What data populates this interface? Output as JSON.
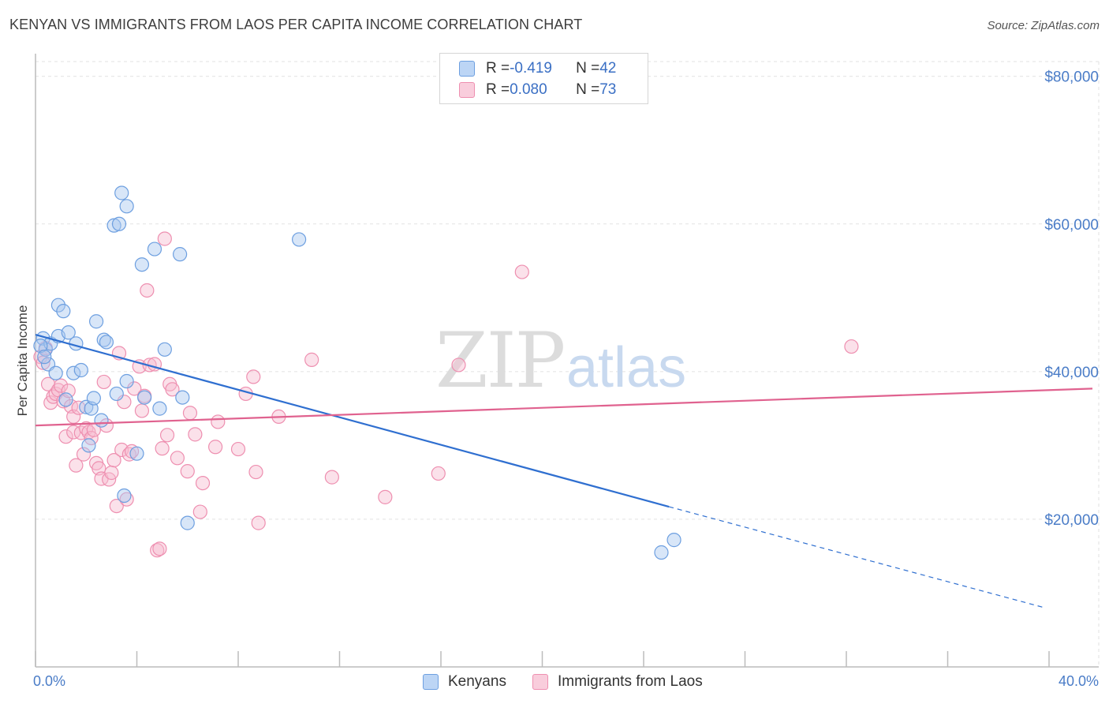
{
  "title": "KENYAN VS IMMIGRANTS FROM LAOS PER CAPITA INCOME CORRELATION CHART",
  "source": "Source: ZipAtlas.com",
  "watermark": {
    "zip": "ZIP",
    "atlas": "atlas"
  },
  "legend": {
    "row1": {
      "r_label": "R = ",
      "r_value": "-0.419",
      "n_label": "N = ",
      "n_value": "42"
    },
    "row2": {
      "r_label": "R = ",
      "r_value": "0.080",
      "n_label": "N = ",
      "n_value": "73"
    }
  },
  "bottom_legend": {
    "kenyans": "Kenyans",
    "laos": "Immigrants from Laos"
  },
  "colors": {
    "kenyans_fill": "#a9c8f0",
    "kenyans_stroke": "#6d9fe0",
    "kenyans_line": "#2f6fd0",
    "laos_fill": "#f7bdd0",
    "laos_stroke": "#ee8fb0",
    "laos_line": "#e0628f",
    "tick_text": "#4a7cc7",
    "grid": "#e2e2e2"
  },
  "chart_data": {
    "type": "scatter",
    "title": "KENYAN VS IMMIGRANTS FROM LAOS PER CAPITA INCOME CORRELATION CHART",
    "xlabel": "",
    "ylabel": "Per Capita Income",
    "xlim": [
      0,
      40
    ],
    "ylim": [
      0,
      82000
    ],
    "x_tick_labels": [
      "0.0%",
      "40.0%"
    ],
    "y_ticks": [
      20000,
      40000,
      60000,
      80000
    ],
    "y_tick_labels": [
      "$20,000",
      "$40,000",
      "$60,000",
      "$80,000"
    ],
    "grid": true,
    "legend_position": "top-center",
    "series": [
      {
        "name": "Kenyans",
        "r": -0.419,
        "n": 42,
        "trend": {
          "x0": 0,
          "y0": 45000,
          "x1": 25.0,
          "y1": 21700,
          "dashed_to_x": 40,
          "dashed_to_y": 8000
        },
        "points": [
          [
            0.3,
            44500
          ],
          [
            0.4,
            43000
          ],
          [
            0.5,
            41000
          ],
          [
            0.6,
            43800
          ],
          [
            0.8,
            39800
          ],
          [
            0.9,
            44800
          ],
          [
            0.9,
            49000
          ],
          [
            1.1,
            48200
          ],
          [
            1.2,
            36200
          ],
          [
            1.3,
            45300
          ],
          [
            1.5,
            39800
          ],
          [
            1.6,
            43800
          ],
          [
            1.8,
            40200
          ],
          [
            2.0,
            35200
          ],
          [
            2.1,
            30000
          ],
          [
            2.2,
            35000
          ],
          [
            2.3,
            36400
          ],
          [
            2.4,
            46800
          ],
          [
            2.6,
            33400
          ],
          [
            2.7,
            44300
          ],
          [
            2.8,
            44000
          ],
          [
            3.1,
            59800
          ],
          [
            3.2,
            37000
          ],
          [
            3.3,
            60000
          ],
          [
            3.4,
            64200
          ],
          [
            3.5,
            23200
          ],
          [
            3.6,
            62400
          ],
          [
            3.6,
            38700
          ],
          [
            4.0,
            28900
          ],
          [
            4.2,
            54500
          ],
          [
            4.3,
            36500
          ],
          [
            4.7,
            56600
          ],
          [
            4.9,
            35000
          ],
          [
            5.1,
            43000
          ],
          [
            5.7,
            55900
          ],
          [
            5.8,
            36500
          ],
          [
            6.0,
            19500
          ],
          [
            10.4,
            57900
          ],
          [
            24.7,
            15500
          ],
          [
            25.2,
            17200
          ],
          [
            0.2,
            43500
          ],
          [
            0.35,
            42000
          ]
        ]
      },
      {
        "name": "Immigrants from Laos",
        "r": 0.08,
        "n": 73,
        "trend": {
          "x0": 0,
          "y0": 32700,
          "x1": 40,
          "y1": 37700
        },
        "points": [
          [
            0.2,
            42000
          ],
          [
            0.3,
            41200
          ],
          [
            0.4,
            43200
          ],
          [
            0.5,
            38300
          ],
          [
            0.6,
            35800
          ],
          [
            0.7,
            36600
          ],
          [
            0.8,
            37000
          ],
          [
            0.9,
            37500
          ],
          [
            1.0,
            38100
          ],
          [
            1.1,
            36000
          ],
          [
            1.2,
            31200
          ],
          [
            1.3,
            37400
          ],
          [
            1.4,
            35300
          ],
          [
            1.5,
            33900
          ],
          [
            1.5,
            31800
          ],
          [
            1.6,
            27300
          ],
          [
            1.7,
            35100
          ],
          [
            1.8,
            31700
          ],
          [
            1.9,
            28800
          ],
          [
            2.0,
            32300
          ],
          [
            2.1,
            31800
          ],
          [
            2.2,
            31000
          ],
          [
            2.3,
            32100
          ],
          [
            2.4,
            27600
          ],
          [
            2.5,
            26900
          ],
          [
            2.6,
            25500
          ],
          [
            2.7,
            38600
          ],
          [
            2.8,
            32700
          ],
          [
            2.9,
            25400
          ],
          [
            3.0,
            26300
          ],
          [
            3.1,
            28000
          ],
          [
            3.2,
            21800
          ],
          [
            3.3,
            42500
          ],
          [
            3.4,
            29400
          ],
          [
            3.5,
            35900
          ],
          [
            3.6,
            22700
          ],
          [
            3.7,
            28800
          ],
          [
            3.8,
            29200
          ],
          [
            3.9,
            37700
          ],
          [
            4.1,
            40700
          ],
          [
            4.2,
            34700
          ],
          [
            4.3,
            36700
          ],
          [
            4.4,
            51000
          ],
          [
            4.5,
            40900
          ],
          [
            4.7,
            41000
          ],
          [
            4.8,
            15800
          ],
          [
            4.9,
            16000
          ],
          [
            5.0,
            29600
          ],
          [
            5.1,
            58000
          ],
          [
            5.2,
            31400
          ],
          [
            5.3,
            38300
          ],
          [
            5.4,
            37600
          ],
          [
            5.6,
            28300
          ],
          [
            6.0,
            26500
          ],
          [
            6.1,
            34400
          ],
          [
            6.3,
            31500
          ],
          [
            6.5,
            21000
          ],
          [
            6.6,
            24900
          ],
          [
            7.1,
            29800
          ],
          [
            7.2,
            33200
          ],
          [
            8.0,
            29500
          ],
          [
            8.3,
            37000
          ],
          [
            8.6,
            39300
          ],
          [
            8.7,
            26400
          ],
          [
            8.8,
            19500
          ],
          [
            9.6,
            33900
          ],
          [
            10.9,
            41600
          ],
          [
            11.7,
            25700
          ],
          [
            13.8,
            23000
          ],
          [
            15.9,
            26200
          ],
          [
            16.7,
            40900
          ],
          [
            19.2,
            53500
          ],
          [
            32.2,
            43400
          ]
        ]
      }
    ]
  }
}
